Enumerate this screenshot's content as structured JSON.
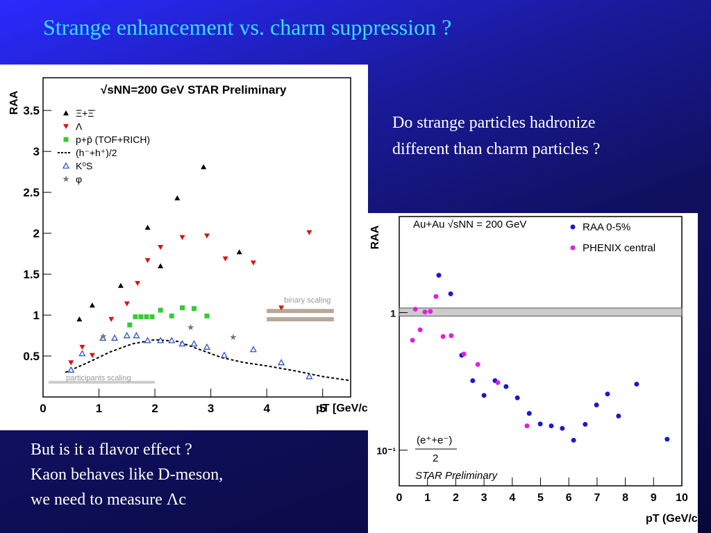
{
  "slide_title": "Strange enhancement vs. charm suppression ?",
  "question_lines": [
    "Do strange particles hadronize",
    "different than charm particles ?"
  ],
  "note_lines": [
    "But is it a flavor effect ?",
    "Kaon behaves like D-meson,",
    "we need to measure Λc"
  ],
  "chart_data": [
    {
      "type": "scatter",
      "title": "√sNN=200 GeV STAR Preliminary",
      "xlabel": "pT [GeV/c]",
      "ylabel": "RAA",
      "xlim": [
        0,
        5.5
      ],
      "ylim": [
        0,
        3.9
      ],
      "xticks": [
        0,
        1,
        2,
        3,
        4,
        5
      ],
      "yticks": [
        0.5,
        1,
        1.5,
        2,
        2.5,
        3,
        3.5
      ],
      "log_y": false,
      "reference_band": [
        0.95,
        1.05
      ],
      "reference_band_x": [
        4.0,
        5.2
      ],
      "reference_band_label": "binary scaling",
      "participants_line": 0.18,
      "participants_line_x": [
        0.1,
        2.0
      ],
      "participants_label": "participants scaling",
      "series": [
        {
          "name": "Ξ+Ξ̄",
          "color": "#000000",
          "marker": "triangle",
          "x": [
            0.65,
            0.88,
            1.39,
            1.87,
            2.1,
            2.4,
            2.87,
            3.51
          ],
          "values": [
            0.95,
            1.12,
            1.36,
            2.07,
            1.6,
            2.43,
            2.81,
            1.77
          ]
        },
        {
          "name": "Λ",
          "color": "#e01010",
          "marker": "triangle-down",
          "x": [
            0.5,
            0.7,
            0.88,
            1.22,
            1.5,
            1.69,
            1.87,
            2.1,
            2.49,
            2.93,
            3.26,
            3.76,
            4.26,
            4.76
          ],
          "values": [
            0.42,
            0.61,
            0.51,
            0.95,
            1.14,
            1.39,
            1.67,
            1.83,
            1.95,
            1.97,
            1.69,
            1.64,
            1.09,
            2.01
          ]
        },
        {
          "name": "p+p̄  (TOF+RICH)",
          "color": "#33cc33",
          "marker": "square",
          "x": [
            1.55,
            1.65,
            1.75,
            1.85,
            1.95,
            2.1,
            2.3,
            2.49,
            2.7,
            2.93
          ],
          "values": [
            0.88,
            0.98,
            0.98,
            0.98,
            0.98,
            1.06,
            0.99,
            1.09,
            1.08,
            0.99
          ]
        },
        {
          "name": "(h⁻+h⁺)/2",
          "color": "#000000",
          "marker": "dashed-line",
          "x": [
            0.4,
            0.8,
            1.2,
            1.6,
            2.0,
            2.4,
            2.8,
            3.2,
            3.6,
            4.0,
            4.5,
            5.0,
            5.5
          ],
          "values": [
            0.3,
            0.42,
            0.55,
            0.65,
            0.7,
            0.68,
            0.58,
            0.48,
            0.42,
            0.38,
            0.32,
            0.25,
            0.2
          ]
        },
        {
          "name": "K⁰S",
          "color": "#2244cc",
          "marker": "open-triangle",
          "x": [
            0.5,
            0.7,
            1.07,
            1.28,
            1.5,
            1.67,
            1.87,
            2.1,
            2.3,
            2.49,
            2.7,
            2.93,
            3.24,
            3.76,
            4.26,
            4.76
          ],
          "values": [
            0.33,
            0.53,
            0.72,
            0.72,
            0.75,
            0.75,
            0.69,
            0.69,
            0.69,
            0.65,
            0.65,
            0.61,
            0.51,
            0.58,
            0.42,
            0.25
          ]
        },
        {
          "name": "φ",
          "color": "#777777",
          "marker": "star",
          "x": [
            1.08,
            2.64,
            3.4
          ],
          "values": [
            0.74,
            0.85,
            0.73
          ]
        }
      ]
    },
    {
      "type": "scatter",
      "title": "Au+Au √sNN = 200 GeV",
      "xlabel": "pT (GeV/c)",
      "ylabel": "RAA",
      "xlim": [
        0,
        10
      ],
      "ylim": [
        0.055,
        5
      ],
      "xticks": [
        0,
        1,
        2,
        3,
        4,
        5,
        6,
        7,
        8,
        9,
        10
      ],
      "yticks": [
        {
          "value": 0.1,
          "label": "10⁻¹"
        },
        1
      ],
      "log_y": true,
      "reference_band": [
        0.944,
        1.08
      ],
      "reference_band_x": [
        0,
        10
      ],
      "annotations": [
        "(e⁺+e⁻)",
        "2",
        "STAR Preliminary"
      ],
      "series": [
        {
          "name": "RAA 0-5%",
          "color": "#1a1acc",
          "marker": "circle",
          "x": [
            1.4,
            1.82,
            2.21,
            2.6,
            3.0,
            3.39,
            3.78,
            4.18,
            4.6,
            4.99,
            5.38,
            5.77,
            6.17,
            6.58,
            6.98,
            7.37,
            7.76,
            8.4,
            9.48
          ],
          "values": [
            1.87,
            1.37,
            0.49,
            0.32,
            0.25,
            0.32,
            0.29,
            0.24,
            0.185,
            0.155,
            0.15,
            0.144,
            0.118,
            0.154,
            0.213,
            0.256,
            0.177,
            0.302,
            0.12
          ]
        },
        {
          "name": "PHENIX central",
          "color": "#dd22dd",
          "marker": "circle",
          "x": [
            0.47,
            0.57,
            0.74,
            0.91,
            1.1,
            1.3,
            1.55,
            1.84,
            2.29,
            2.78,
            3.49,
            4.52
          ],
          "values": [
            0.63,
            1.06,
            0.75,
            1.01,
            1.02,
            1.31,
            0.67,
            0.68,
            0.5,
            0.42,
            0.31,
            0.15
          ]
        }
      ]
    }
  ]
}
